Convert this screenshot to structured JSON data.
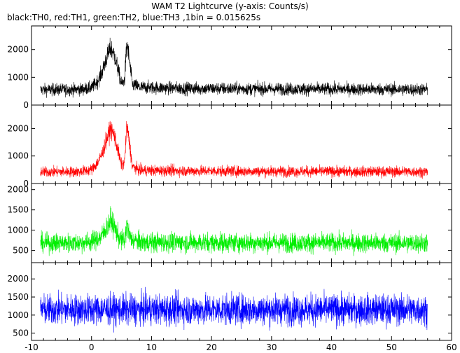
{
  "title": "WAM T2 Lightcurve (y-axis: Counts/s)",
  "subtitle": "black:TH0, red:TH1, green:TH2, blue:TH3 ,1bin = 0.015625s",
  "chart_data": [
    {
      "type": "line",
      "name": "TH0",
      "color": "#000000",
      "xlim": [
        -10,
        60
      ],
      "ylim": [
        0,
        2850
      ],
      "yticks": [
        0,
        1000,
        2000
      ],
      "grid": false,
      "profile": [
        [
          -8.5,
          550
        ],
        [
          -2,
          560
        ],
        [
          0,
          620
        ],
        [
          1,
          850
        ],
        [
          1.8,
          1200
        ],
        [
          2.5,
          1700
        ],
        [
          3.2,
          2050
        ],
        [
          3.8,
          1800
        ],
        [
          4.4,
          1300
        ],
        [
          5.0,
          750
        ],
        [
          5.5,
          900
        ],
        [
          5.9,
          2250
        ],
        [
          6.3,
          1600
        ],
        [
          6.8,
          750
        ],
        [
          8,
          640
        ],
        [
          15,
          600
        ],
        [
          30,
          580
        ],
        [
          56,
          560
        ]
      ],
      "noise_band": 560,
      "x_range": [
        -8.5,
        56
      ]
    },
    {
      "type": "line",
      "name": "TH1",
      "color": "#ff0000",
      "xlim": [
        -10,
        60
      ],
      "ylim": [
        0,
        2850
      ],
      "yticks": [
        0,
        1000,
        2000
      ],
      "grid": false,
      "profile": [
        [
          -8.5,
          420
        ],
        [
          -2,
          430
        ],
        [
          0,
          500
        ],
        [
          1,
          750
        ],
        [
          1.8,
          1100
        ],
        [
          2.5,
          1600
        ],
        [
          3.2,
          2000
        ],
        [
          3.8,
          1750
        ],
        [
          4.4,
          1200
        ],
        [
          5.0,
          650
        ],
        [
          5.5,
          800
        ],
        [
          5.9,
          2100
        ],
        [
          6.3,
          1500
        ],
        [
          6.8,
          620
        ],
        [
          8,
          480
        ],
        [
          15,
          460
        ],
        [
          30,
          440
        ],
        [
          56,
          430
        ]
      ],
      "noise_band": 520,
      "x_range": [
        -8.5,
        56
      ]
    },
    {
      "type": "line",
      "name": "TH2",
      "color": "#00ee00",
      "xlim": [
        -10,
        60
      ],
      "ylim": [
        200,
        2150
      ],
      "yticks": [
        500,
        1000,
        1500,
        2000
      ],
      "grid": false,
      "profile": [
        [
          -8.5,
          680
        ],
        [
          -2,
          690
        ],
        [
          0,
          720
        ],
        [
          1.5,
          820
        ],
        [
          2.5,
          1050
        ],
        [
          3.2,
          1250
        ],
        [
          3.9,
          1050
        ],
        [
          4.6,
          800
        ],
        [
          5.5,
          720
        ],
        [
          5.9,
          1150
        ],
        [
          6.4,
          800
        ],
        [
          8,
          700
        ],
        [
          30,
          690
        ],
        [
          56,
          680
        ]
      ],
      "noise_band": 560,
      "x_range": [
        -8.5,
        56
      ]
    },
    {
      "type": "line",
      "name": "TH3",
      "color": "#0000ff",
      "xlim": [
        -10,
        60
      ],
      "ylim": [
        300,
        2450
      ],
      "yticks": [
        500,
        1000,
        1500,
        2000
      ],
      "grid": false,
      "profile": [
        [
          -8.5,
          1150
        ],
        [
          10,
          1150
        ],
        [
          30,
          1150
        ],
        [
          56,
          1150
        ]
      ],
      "noise_band": 820,
      "x_range": [
        -8.5,
        56
      ]
    }
  ],
  "x_axis": {
    "tick_labels": [
      "-10",
      "0",
      "10",
      "20",
      "30",
      "40",
      "50",
      "60"
    ],
    "ticks": [
      -10,
      0,
      10,
      20,
      30,
      40,
      50,
      60
    ]
  }
}
